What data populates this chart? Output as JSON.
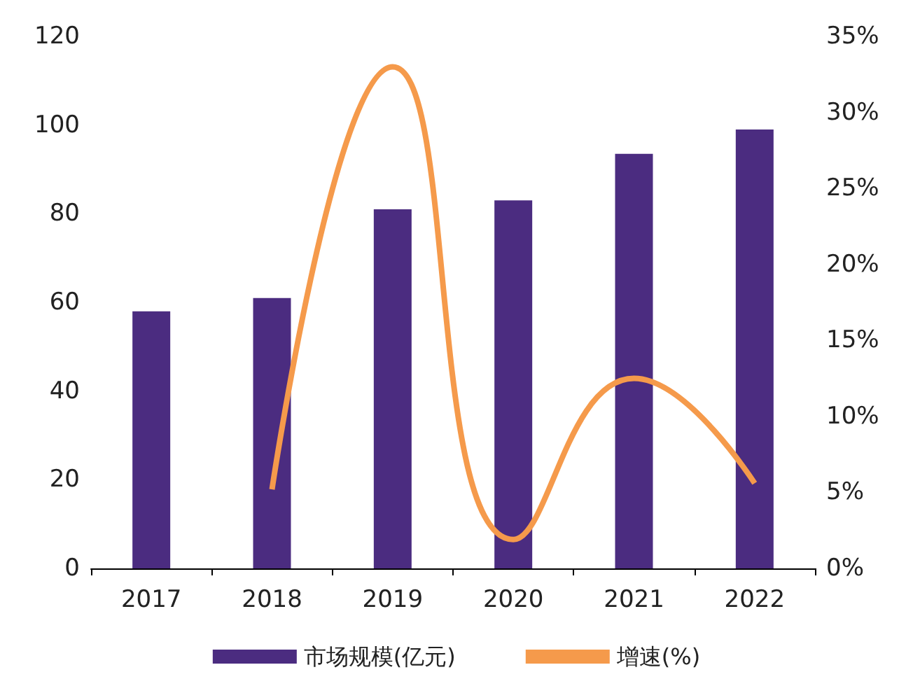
{
  "chart_data": {
    "type": "bar",
    "categories": [
      "2017",
      "2018",
      "2019",
      "2020",
      "2021",
      "2022"
    ],
    "series": [
      {
        "name": "市场规模(亿元)",
        "color": "#4b2c80",
        "values": [
          58,
          61,
          81,
          83,
          93.5,
          99
        ]
      },
      {
        "name": "增速(%)",
        "type": "line",
        "axis": "y2",
        "color": "#f59a4b",
        "values": [
          null,
          5.2,
          33,
          1.9,
          12.5,
          5.6
        ]
      }
    ],
    "ylim": [
      0,
      120
    ],
    "yticks": [
      0,
      20,
      40,
      60,
      80,
      100,
      120
    ],
    "y2lim": [
      0,
      35
    ],
    "y2ticks": [
      {
        "value": 0,
        "label": "0%"
      },
      {
        "value": 5,
        "label": "5%"
      },
      {
        "value": 10,
        "label": "10%"
      },
      {
        "value": 15,
        "label": "15%"
      },
      {
        "value": 20,
        "label": "20%"
      },
      {
        "value": 25,
        "label": "25%"
      },
      {
        "value": 30,
        "label": "30%"
      },
      {
        "value": 35,
        "label": "35%"
      }
    ],
    "grid": false,
    "legend": "bottom",
    "marker": "none"
  }
}
